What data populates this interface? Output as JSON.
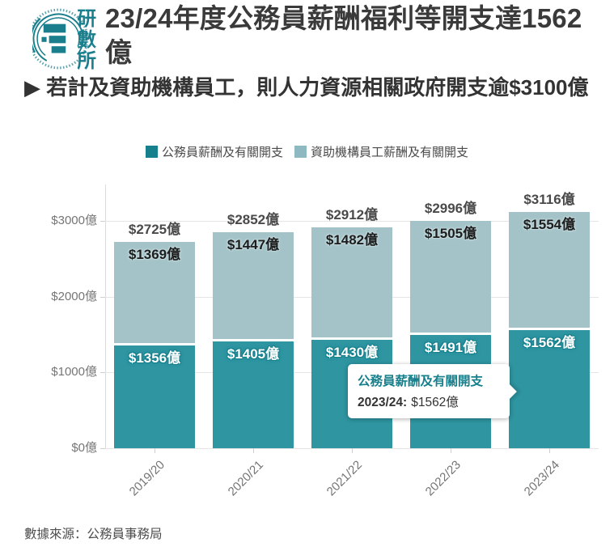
{
  "header": {
    "logo_chars": [
      "研",
      "數",
      "所"
    ],
    "title": "23/24年度公務員薪酬福利等開支達1562億",
    "subtitle": "▶ 若計及資助機構員工，則人力資源相關政府開支逾$3100億"
  },
  "legend": [
    {
      "label": "公務員薪酬及有關開支",
      "color": "#17808D"
    },
    {
      "label": "資助機構員工薪酬及有關開支",
      "color": "#8FB9C0"
    }
  ],
  "chart_data": {
    "type": "bar",
    "stacked": true,
    "grid": true,
    "legend_position": "top",
    "categories": [
      "2019/20",
      "2020/21",
      "2021/22",
      "2022/23",
      "2023/24"
    ],
    "series": [
      {
        "name": "公務員薪酬及有關開支",
        "color": "#17808D",
        "fill": "#2E95A1",
        "values": [
          1356,
          1405,
          1430,
          1491,
          1562
        ],
        "labels": [
          "$1356億",
          "$1405億",
          "$1430億",
          "$1491億",
          "$1562億"
        ]
      },
      {
        "name": "資助機構員工薪酬及有關開支",
        "color": "#8FB9C0",
        "fill": "#A3C3C8",
        "values": [
          1369,
          1447,
          1482,
          1505,
          1554
        ],
        "labels": [
          "$1369億",
          "$1447億",
          "$1482億",
          "$1505億",
          "$1554億"
        ]
      }
    ],
    "totals": [
      2725,
      2852,
      2912,
      2996,
      3116
    ],
    "total_labels": [
      "$2725億",
      "$2852億",
      "$2912億",
      "$2996億",
      "$3116億"
    ],
    "yticks": [
      {
        "value": 0,
        "label": "$0億"
      },
      {
        "value": 1000,
        "label": "$1000億"
      },
      {
        "value": 2000,
        "label": "$2000億"
      },
      {
        "value": 3000,
        "label": "$3000億"
      }
    ],
    "ylim": [
      0,
      3480
    ],
    "xlabel": "",
    "ylabel": ""
  },
  "tooltip": {
    "title": "公務員薪酬及有關開支",
    "category": "2023/24:",
    "value": "$1562億"
  },
  "footer": {
    "source": "數據來源：公務員事務局"
  }
}
